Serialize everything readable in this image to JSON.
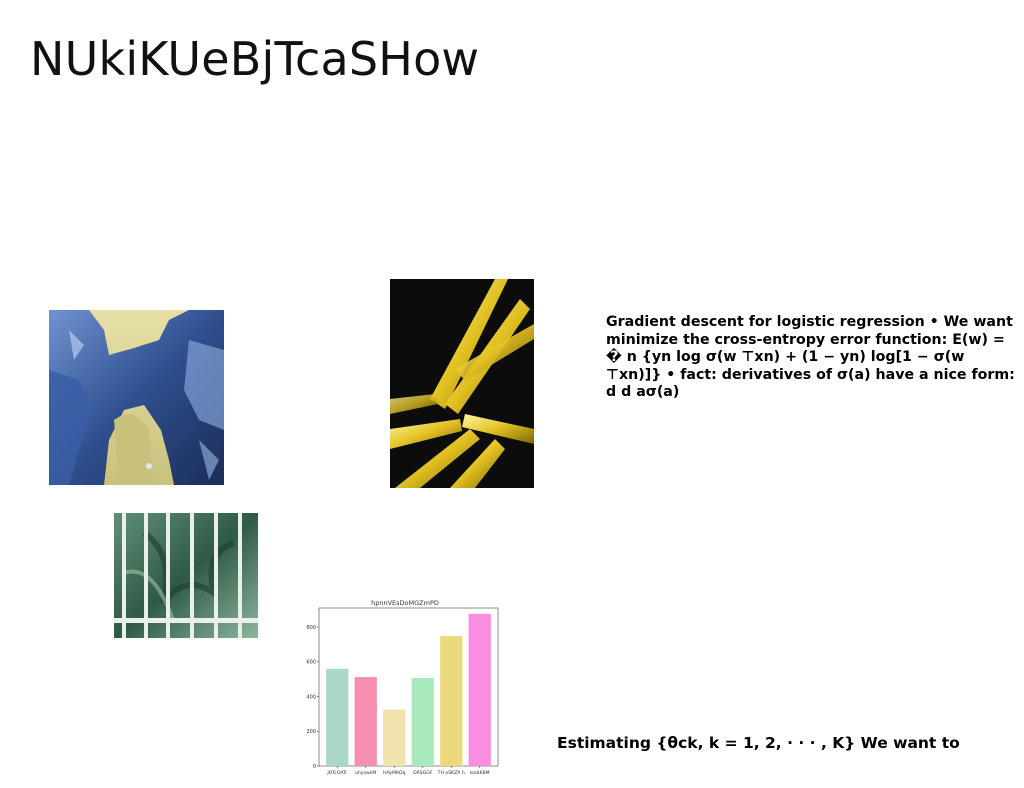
{
  "slide": {
    "title": "NUkiKUeBjTcaSHow",
    "text_block_1": "Gradient descent for logistic regression • We want minimize the cross-entropy error function: E(w) = � n {yn log σ(w ⊤xn) + (1 − yn) log[1 − σ(w ⊤xn)]} • fact: derivatives of σ(a) have a nice form: d d aσ(a)",
    "text_block_2": "Estimating {θck, k = 1, 2, · · · , K} We want to"
  },
  "images": [
    {
      "name": "blue-rock-arch-photo"
    },
    {
      "name": "golden-spikes-photo"
    },
    {
      "name": "greenhouse-window-photo"
    }
  ],
  "chart_data": {
    "type": "bar",
    "title": "hpnnVEsDoMGZmPD",
    "categories": [
      "JOTcOATr",
      "uhyswkM",
      "HAyMKOq",
      "ORSGGF",
      "TH oSKZX h",
      "loxbKBM"
    ],
    "values": [
      560,
      512,
      325,
      508,
      748,
      876
    ],
    "colors": [
      "#a9d8c9",
      "#f48fae",
      "#f2e2ab",
      "#a9eabc",
      "#ecd97e",
      "#fb8de3"
    ],
    "ylim": [
      0,
      910
    ],
    "yticks": [
      0,
      200,
      400,
      600,
      800
    ]
  }
}
